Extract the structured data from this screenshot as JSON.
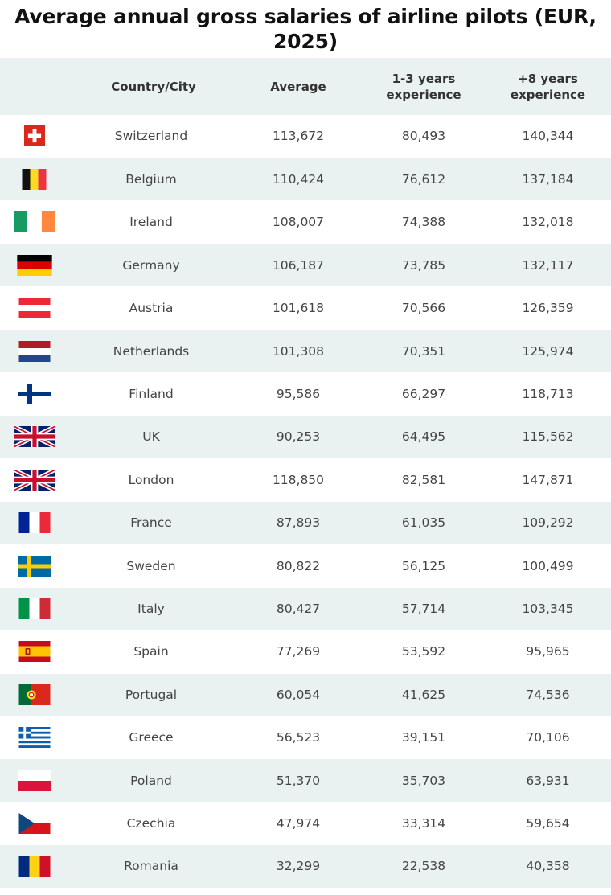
{
  "title": "Average annual gross salaries of airline pilots (EUR, 2025)",
  "chart_data": {
    "type": "table",
    "title": "Average annual gross salaries of airline pilots (EUR, 2025)",
    "columns": [
      "",
      "Country/City",
      "Average",
      "1-3 years experience",
      "+8 years experience"
    ],
    "rows": [
      {
        "flag": "switzerland-flag-icon",
        "name": "Switzerland",
        "average": "113,672",
        "years_1_3": "80,493",
        "years_8_plus": "140,344"
      },
      {
        "flag": "belgium-flag-icon",
        "name": "Belgium",
        "average": "110,424",
        "years_1_3": "76,612",
        "years_8_plus": "137,184"
      },
      {
        "flag": "ireland-flag-icon",
        "name": "Ireland",
        "average": "108,007",
        "years_1_3": "74,388",
        "years_8_plus": "132,018"
      },
      {
        "flag": "germany-flag-icon",
        "name": "Germany",
        "average": "106,187",
        "years_1_3": "73,785",
        "years_8_plus": "132,117"
      },
      {
        "flag": "austria-flag-icon",
        "name": "Austria",
        "average": "101,618",
        "years_1_3": "70,566",
        "years_8_plus": "126,359"
      },
      {
        "flag": "netherlands-flag-icon",
        "name": "Netherlands",
        "average": "101,308",
        "years_1_3": "70,351",
        "years_8_plus": "125,974"
      },
      {
        "flag": "finland-flag-icon",
        "name": "Finland",
        "average": "95,586",
        "years_1_3": "66,297",
        "years_8_plus": "118,713"
      },
      {
        "flag": "uk-flag-icon",
        "name": "UK",
        "average": "90,253",
        "years_1_3": "64,495",
        "years_8_plus": "115,562"
      },
      {
        "flag": "uk-flag-icon",
        "name": "London",
        "average": "118,850",
        "years_1_3": "82,581",
        "years_8_plus": "147,871"
      },
      {
        "flag": "france-flag-icon",
        "name": "France",
        "average": "87,893",
        "years_1_3": "61,035",
        "years_8_plus": "109,292"
      },
      {
        "flag": "sweden-flag-icon",
        "name": "Sweden",
        "average": "80,822",
        "years_1_3": "56,125",
        "years_8_plus": "100,499"
      },
      {
        "flag": "italy-flag-icon",
        "name": "Italy",
        "average": "80,427",
        "years_1_3": "57,714",
        "years_8_plus": "103,345"
      },
      {
        "flag": "spain-flag-icon",
        "name": "Spain",
        "average": "77,269",
        "years_1_3": "53,592",
        "years_8_plus": "95,965"
      },
      {
        "flag": "portugal-flag-icon",
        "name": "Portugal",
        "average": "60,054",
        "years_1_3": "41,625",
        "years_8_plus": "74,536"
      },
      {
        "flag": "greece-flag-icon",
        "name": "Greece",
        "average": "56,523",
        "years_1_3": "39,151",
        "years_8_plus": "70,106"
      },
      {
        "flag": "poland-flag-icon",
        "name": "Poland",
        "average": "51,370",
        "years_1_3": "35,703",
        "years_8_plus": "63,931"
      },
      {
        "flag": "czechia-flag-icon",
        "name": "Czechia",
        "average": "47,974",
        "years_1_3": "33,314",
        "years_8_plus": "59,654"
      },
      {
        "flag": "romania-flag-icon",
        "name": "Romania",
        "average": "32,299",
        "years_1_3": "22,538",
        "years_8_plus": "40,358"
      }
    ]
  },
  "colors": {
    "stripe": "#e9f1f1",
    "text": "#444444"
  }
}
